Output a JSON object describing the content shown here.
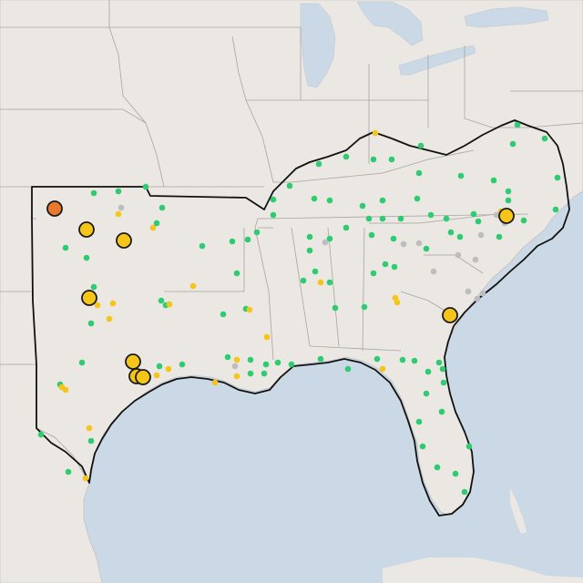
{
  "map": {
    "basemap_colors": {
      "land": "#ebe7e3",
      "water": "#cbd9e6",
      "state_border": "#a7a5a2",
      "region_outline": "#111111"
    },
    "marker_colors": {
      "green": "#2ecc71",
      "yellow": "#f5c518",
      "gray": "#bdbdbd",
      "orange": "#e8792f"
    },
    "legend": []
  }
}
